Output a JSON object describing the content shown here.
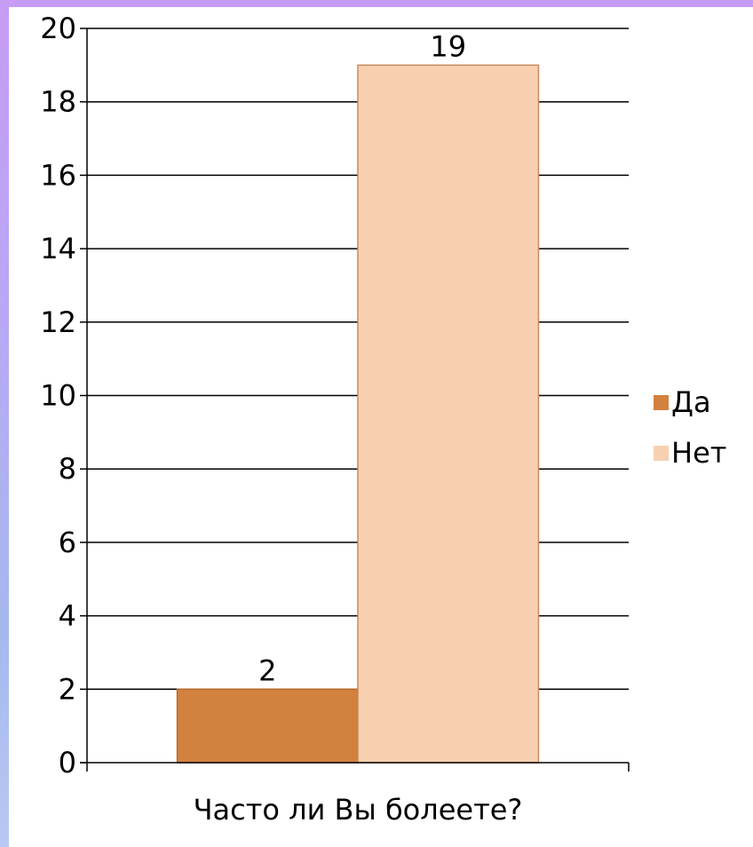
{
  "colors": {
    "series_1": "#d2813e",
    "series_1_border": "#b86a2a",
    "series_2": "#f8d0b0",
    "series_2_border": "#c98a5e",
    "gridline": "#000000"
  },
  "chart_data": {
    "type": "bar",
    "title": "",
    "xlabel": "",
    "ylabel": "",
    "categories": [
      "Часто ли Вы болеете?"
    ],
    "series": [
      {
        "name": "Да",
        "values": [
          2
        ]
      },
      {
        "name": "Нет",
        "values": [
          19
        ]
      }
    ],
    "ylim": [
      0,
      20
    ],
    "yticks": [
      "0",
      "2",
      "4",
      "6",
      "8",
      "10",
      "12",
      "14",
      "16",
      "18",
      "20"
    ],
    "data_labels": [
      "2",
      "19"
    ],
    "grid": true,
    "legend_position": "right"
  }
}
